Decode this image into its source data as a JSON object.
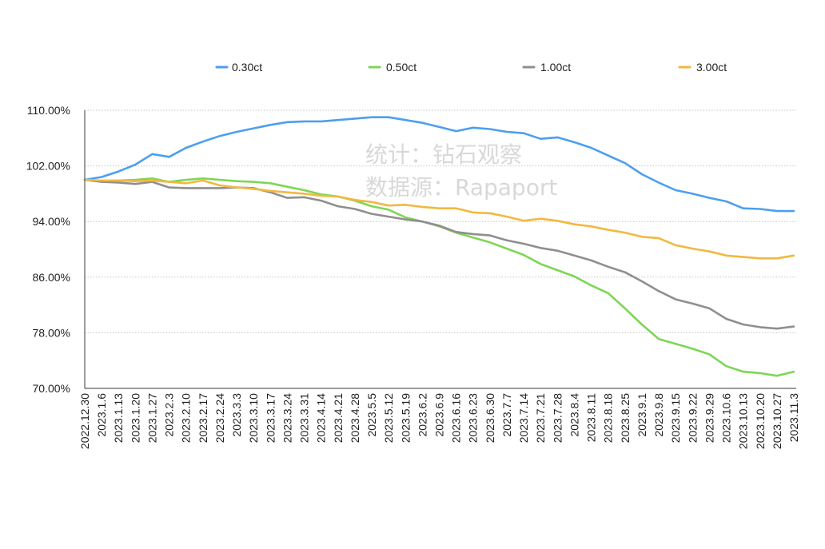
{
  "watermark": {
    "line1": "统计：钻石观察",
    "line2": "数据源：Rapaport"
  },
  "chart_data": {
    "type": "line",
    "x": [
      "2022.12.30",
      "2023.1.6",
      "2023.1.13",
      "2023.1.20",
      "2023.1.27",
      "2023.2.3",
      "2023.2.10",
      "2023.2.17",
      "2023.2.24",
      "2023.3.3",
      "2023.3.10",
      "2023.3.17",
      "2023.3.24",
      "2023.3.31",
      "2023.4.14",
      "2023.4.21",
      "2023.4.28",
      "2023.5.5",
      "2023.5.12",
      "2023.5.19",
      "2023.6.2",
      "2023.6.9",
      "2023.6.16",
      "2023.6.23",
      "2023.6.30",
      "2023.7.7",
      "2023.7.14",
      "2023.7.21",
      "2023.7.28",
      "2023.8.4",
      "2023.8.11",
      "2023.8.18",
      "2023.8.25",
      "2023.9.1",
      "2023.9.8",
      "2023.9.15",
      "2023.9.22",
      "2023.9.29",
      "2023.10.6",
      "2023.10.13",
      "2023.10.20",
      "2023.10.27",
      "2023.11.3"
    ],
    "series": [
      {
        "name": "0.30ct",
        "color": "#4C9FEF",
        "values": [
          100.0,
          100.4,
          101.2,
          102.2,
          103.7,
          103.3,
          104.6,
          105.5,
          106.3,
          106.9,
          107.4,
          107.9,
          108.3,
          108.4,
          108.4,
          108.6,
          108.8,
          109.0,
          109.0,
          108.6,
          108.2,
          107.6,
          107.0,
          107.5,
          107.3,
          106.9,
          106.7,
          105.9,
          106.1,
          105.4,
          104.6,
          103.5,
          102.4,
          100.8,
          99.6,
          98.5,
          98.0,
          97.4,
          96.9,
          95.9,
          95.8,
          95.5,
          95.5
        ]
      },
      {
        "name": "0.50ct",
        "color": "#7ED655",
        "values": [
          100.0,
          99.8,
          99.9,
          100.0,
          100.2,
          99.7,
          100.0,
          100.2,
          100.0,
          99.8,
          99.7,
          99.5,
          99.0,
          98.5,
          97.9,
          97.6,
          97.0,
          96.2,
          95.7,
          94.6,
          94.0,
          93.3,
          92.4,
          91.7,
          91.0,
          90.1,
          89.2,
          87.9,
          87.0,
          86.1,
          84.8,
          83.7,
          81.5,
          79.2,
          77.1,
          76.4,
          75.7,
          74.9,
          73.2,
          72.4,
          72.2,
          71.8,
          72.4
        ]
      },
      {
        "name": "1.00ct",
        "color": "#8F8F8F",
        "values": [
          100.0,
          99.7,
          99.6,
          99.4,
          99.7,
          98.9,
          98.8,
          98.8,
          98.8,
          98.9,
          98.8,
          98.2,
          97.4,
          97.5,
          97.0,
          96.2,
          95.8,
          95.1,
          94.7,
          94.3,
          94.0,
          93.4,
          92.5,
          92.2,
          92.0,
          91.3,
          90.8,
          90.2,
          89.8,
          89.1,
          88.4,
          87.5,
          86.7,
          85.4,
          84.0,
          82.8,
          82.2,
          81.5,
          80.0,
          79.2,
          78.8,
          78.6,
          78.9
        ]
      },
      {
        "name": "3.00ct",
        "color": "#F2B840",
        "values": [
          100.0,
          99.9,
          99.9,
          99.8,
          99.9,
          99.7,
          99.5,
          99.9,
          99.2,
          98.9,
          98.7,
          98.4,
          98.2,
          98.0,
          97.7,
          97.6,
          97.1,
          96.8,
          96.3,
          96.4,
          96.1,
          95.9,
          95.9,
          95.3,
          95.2,
          94.7,
          94.1,
          94.4,
          94.1,
          93.6,
          93.3,
          92.8,
          92.4,
          91.8,
          91.6,
          90.6,
          90.1,
          89.7,
          89.1,
          88.9,
          88.7,
          88.7,
          89.1
        ]
      }
    ],
    "ylim": [
      70,
      110
    ],
    "yticks": [
      70,
      78,
      86,
      94,
      102,
      110
    ],
    "ytick_labels": [
      "70.00%",
      "78.00%",
      "86.00%",
      "94.00%",
      "102.00%",
      "110.00%"
    ],
    "grid": true,
    "legend": "top"
  }
}
